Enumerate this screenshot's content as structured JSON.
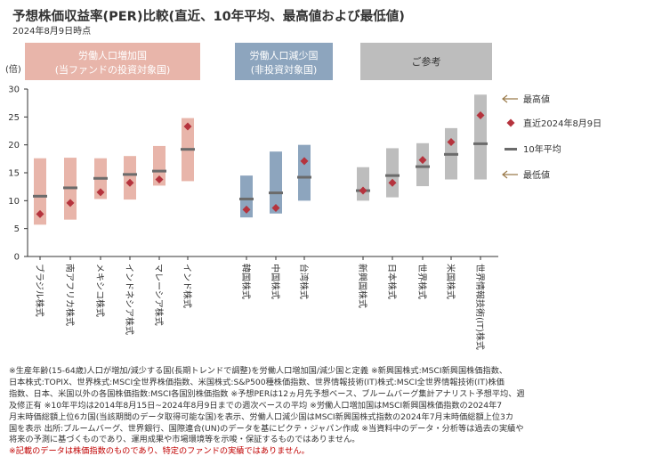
{
  "title": "予想株価収益率(PER)比較(直近、10年平均、最高値および最低値)",
  "date_note": "2024年8月9日時点",
  "chart_data": {
    "type": "range",
    "y_unit_label": "(倍)",
    "ylim": [
      0,
      30
    ],
    "yticks": [
      0,
      5,
      10,
      15,
      20,
      25,
      30
    ],
    "groups": [
      {
        "label_lines": [
          "労働人口増加国",
          "(当ファンドの投資対象国)"
        ],
        "color": "#e8b5aa",
        "text_color": "#ffffff"
      },
      {
        "label_lines": [
          "労働人口減少国",
          "(非投資対象国)"
        ],
        "color": "#8da5be",
        "text_color": "#ffffff"
      },
      {
        "label_lines": [
          "ご参考"
        ],
        "color": "#bdbdbd",
        "text_color": "#333333"
      }
    ],
    "categories": [
      {
        "name": "ブラジル株式",
        "group": 0,
        "max": 17.6,
        "min": 5.7,
        "avg": 10.8,
        "latest": 7.6
      },
      {
        "name": "南アフリカ株式",
        "group": 0,
        "max": 17.7,
        "min": 6.6,
        "avg": 12.3,
        "latest": 9.6
      },
      {
        "name": "メキシコ株式",
        "group": 0,
        "max": 17.6,
        "min": 10.3,
        "avg": 14.0,
        "latest": 11.5
      },
      {
        "name": "インドネシア株式",
        "group": 0,
        "max": 18.0,
        "min": 10.2,
        "avg": 14.7,
        "latest": 13.2
      },
      {
        "name": "マレーシア株式",
        "group": 0,
        "max": 19.8,
        "min": 12.7,
        "avg": 15.3,
        "latest": 13.8
      },
      {
        "name": "インド株式",
        "group": 0,
        "max": 24.8,
        "min": 13.5,
        "avg": 19.2,
        "latest": 23.3
      },
      {
        "name": "韓国株式",
        "group": 1,
        "max": 14.5,
        "min": 7.0,
        "avg": 10.3,
        "latest": 8.4
      },
      {
        "name": "中国株式",
        "group": 1,
        "max": 18.8,
        "min": 7.7,
        "avg": 11.4,
        "latest": 8.7
      },
      {
        "name": "台湾株式",
        "group": 1,
        "max": 20.0,
        "min": 10.0,
        "avg": 14.2,
        "latest": 17.1
      },
      {
        "name": "新興国株式",
        "group": 2,
        "max": 16.0,
        "min": 10.0,
        "avg": 11.8,
        "latest": 11.8
      },
      {
        "name": "日本株式",
        "group": 2,
        "max": 19.4,
        "min": 10.6,
        "avg": 14.5,
        "latest": 13.2
      },
      {
        "name": "世界株式",
        "group": 2,
        "max": 20.3,
        "min": 12.6,
        "avg": 16.1,
        "latest": 17.3
      },
      {
        "name": "米国株式",
        "group": 2,
        "max": 23.0,
        "min": 13.8,
        "avg": 18.3,
        "latest": 20.5
      },
      {
        "name": "世界情報技術(IT)株式",
        "group": 2,
        "max": 29.0,
        "min": 13.8,
        "avg": 20.2,
        "latest": 25.3
      }
    ],
    "legend": {
      "max": "最高値",
      "latest": "直近2024年8月9日",
      "avg": "10年平均",
      "min": "最低値"
    },
    "colors": {
      "latest_marker": "#b5333d",
      "avg_bar": "#6b6b6b",
      "legend_arrow": "#9a7a4a",
      "axis": "#333333"
    }
  },
  "notes": [
    {
      "text": "※生産年齢(15-64歳)人口が増加/減少する国(長期トレンドで調整)を労働人口増加国/減少国と定義 ※新興国株式:MSCI新興国株価指数、",
      "red": false
    },
    {
      "text": "日本株式:TOPIX、世界株式:MSCI全世界株価指数、米国株式:S&P500種株価指数、世界情報技術(IT)株式:MSCI全世界情報技術(IT)株価",
      "red": false
    },
    {
      "text": "指数、日本、米国以外の各国株価指数:MSCI各国別株価指数 ※予想PERは12ヵ月先予想ベース、ブルームバーグ集計アナリスト予想平均、週",
      "red": false
    },
    {
      "text": "及修正有 ※10年平均は2014年8月15日~2024年8月9日までの週次ベースの平均 ※労働人口増加国はMSCI新興国株価指数の2024年7",
      "red": false
    },
    {
      "text": "月末時価総額上位6カ国(当該期間のデータ取得可能な国)を表示、労働人口減少国はMSCI新興国株式指数の2024年7月末時価総額上位3カ",
      "red": false
    },
    {
      "text": "国を表示 出所:ブルームバーグ、世界銀行、国際連合(UN)のデータを基にピクテ・ジャパン作成 ※当資料中のデータ・分析等は過去の実績や",
      "red": false
    },
    {
      "text": "将来の予測に基づくものであり、運用成果や市場環境等を示唆・保証するものではありません。",
      "red": false
    },
    {
      "text": "※記載のデータは株価指数のものであり、特定のファンドの実績ではありません。",
      "red": true
    }
  ]
}
